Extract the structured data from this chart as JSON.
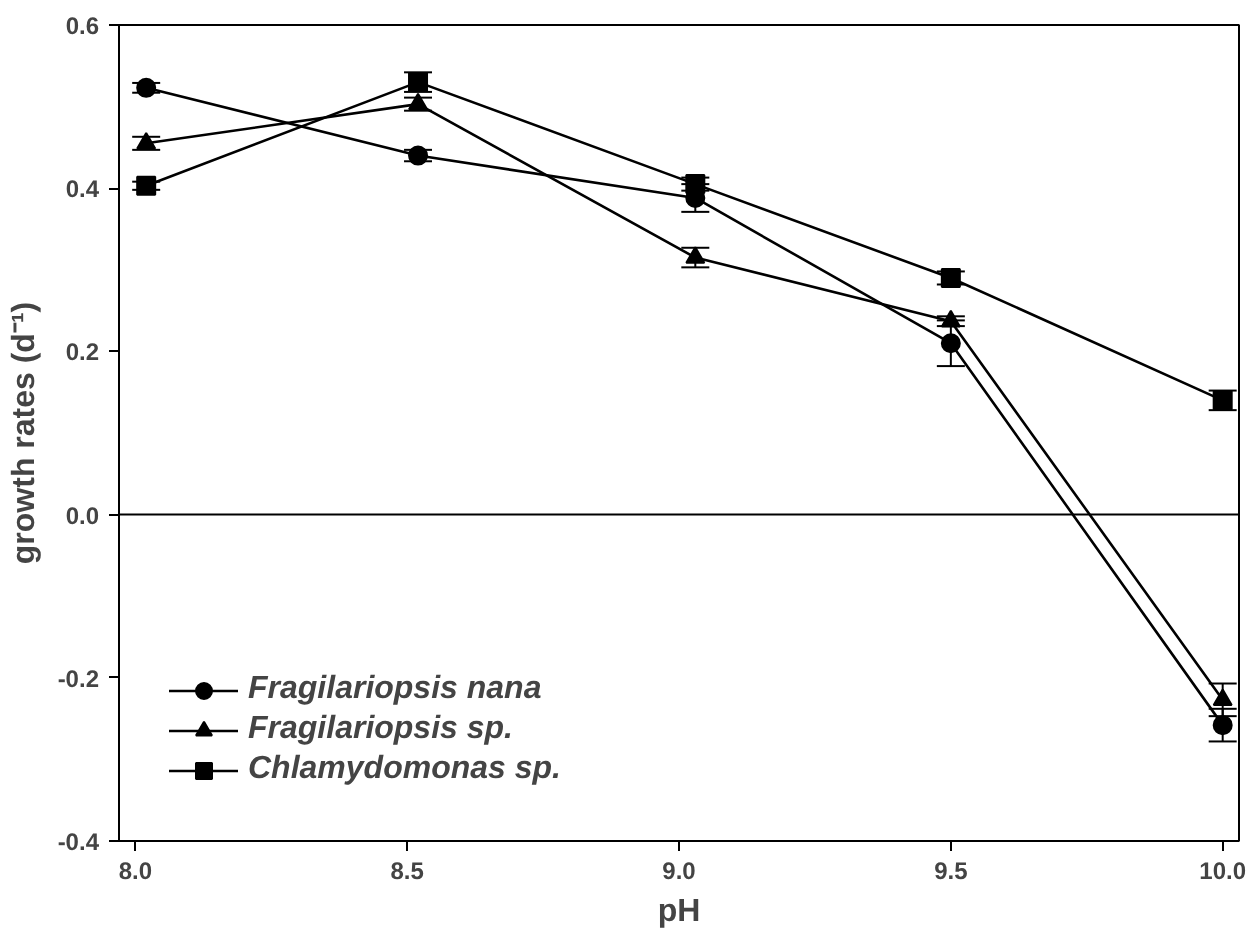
{
  "chart_data": {
    "type": "line",
    "xlabel": "pH",
    "ylabel": "growth rates (d⁻¹)",
    "x": [
      8.02,
      8.52,
      9.03,
      9.5,
      10.0
    ],
    "series": [
      {
        "name": "Fragilariopsis nana",
        "color": "#000000",
        "marker": "circle",
        "values": [
          0.523,
          0.44,
          0.388,
          0.21,
          -0.258
        ],
        "errors": [
          0.006,
          0.007,
          0.017,
          0.028,
          0.02
        ]
      },
      {
        "name": "Fragilariopsis sp.",
        "color": "#000000",
        "marker": "triangle",
        "values": [
          0.455,
          0.503,
          0.315,
          0.237,
          -0.227
        ],
        "errors": [
          0.008,
          0.008,
          0.012,
          0.006,
          0.02
        ]
      },
      {
        "name": "Chlamydomonas sp.",
        "color": "#000000",
        "marker": "square",
        "values": [
          0.403,
          0.53,
          0.405,
          0.29,
          0.14
        ],
        "errors": [
          0.005,
          0.012,
          0.008,
          0.008,
          0.012
        ]
      }
    ],
    "xlim": [
      7.97,
      10.03
    ],
    "ylim": [
      -0.4,
      0.6
    ],
    "xticks": [
      {
        "value": 8.0,
        "label": "8.0"
      },
      {
        "value": 8.5,
        "label": "8.5"
      },
      {
        "value": 9.0,
        "label": "9.0"
      },
      {
        "value": 9.5,
        "label": "9.5"
      },
      {
        "value": 10.0,
        "label": "10.0"
      }
    ],
    "yticks": [
      {
        "value": -0.4,
        "label": "-0.4"
      },
      {
        "value": -0.2,
        "label": "-0.2"
      },
      {
        "value": 0.0,
        "label": "0.0"
      },
      {
        "value": 0.2,
        "label": "0.2"
      },
      {
        "value": 0.4,
        "label": "0.4"
      },
      {
        "value": 0.6,
        "label": "0.6"
      }
    ],
    "ref_lines": [
      {
        "axis": "y",
        "value": 0.0,
        "color": "#000000"
      }
    ],
    "grid": false,
    "legend": "bottom left",
    "line_style": "solid"
  }
}
